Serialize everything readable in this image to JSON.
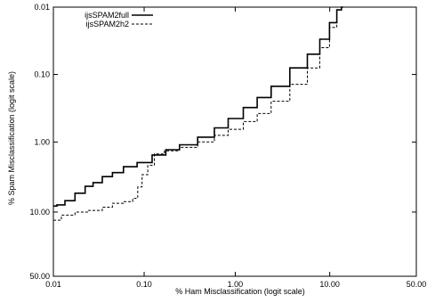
{
  "chart_data": {
    "type": "line",
    "xlabel": "% Ham Misclassification (logit scale)",
    "ylabel": "% Spam Misclassification (logit scale)",
    "x_scale": "logit",
    "y_scale": "logit",
    "y_inverted": true,
    "xlim": [
      0.01,
      50.0
    ],
    "ylim": [
      50.0,
      0.01
    ],
    "x_ticks": [
      0.01,
      0.1,
      1.0,
      10.0,
      50.0
    ],
    "x_tick_labels": [
      "0.01",
      "0.10",
      "1.00",
      "10.00",
      "50.00"
    ],
    "y_ticks": [
      0.01,
      0.1,
      1.0,
      10.0,
      50.0
    ],
    "y_tick_labels": [
      "0.01",
      "0.10",
      "1.00",
      "10.00",
      "50.00"
    ],
    "grid": false,
    "legend_position": "top-left",
    "series": [
      {
        "name": "ijsSPAM2full",
        "line_style": "solid",
        "color": "#000000",
        "points": [
          [
            0.01,
            8.3
          ],
          [
            0.012,
            8.0
          ],
          [
            0.015,
            7.0
          ],
          [
            0.02,
            5.5
          ],
          [
            0.025,
            4.4
          ],
          [
            0.03,
            3.9
          ],
          [
            0.04,
            3.2
          ],
          [
            0.05,
            2.8
          ],
          [
            0.07,
            2.3
          ],
          [
            0.1,
            2.0
          ],
          [
            0.15,
            1.55
          ],
          [
            0.2,
            1.3
          ],
          [
            0.3,
            1.1
          ],
          [
            0.5,
            0.85
          ],
          [
            0.7,
            0.62
          ],
          [
            1.0,
            0.45
          ],
          [
            1.5,
            0.31
          ],
          [
            2.0,
            0.22
          ],
          [
            3.0,
            0.15
          ],
          [
            5.0,
            0.08
          ],
          [
            7.0,
            0.05
          ],
          [
            9.0,
            0.03
          ],
          [
            11.0,
            0.017
          ],
          [
            12.5,
            0.011
          ],
          [
            13.5,
            0.01
          ]
        ]
      },
      {
        "name": "ijsSPAM2h2",
        "line_style": "dashed",
        "color": "#000000",
        "points": [
          [
            0.01,
            12.8
          ],
          [
            0.015,
            11.0
          ],
          [
            0.02,
            10.0
          ],
          [
            0.03,
            9.5
          ],
          [
            0.04,
            8.6
          ],
          [
            0.05,
            7.6
          ],
          [
            0.07,
            7.2
          ],
          [
            0.08,
            6.5
          ],
          [
            0.09,
            4.5
          ],
          [
            0.1,
            3.0
          ],
          [
            0.12,
            2.2
          ],
          [
            0.14,
            1.5
          ],
          [
            0.2,
            1.35
          ],
          [
            0.3,
            1.2
          ],
          [
            0.5,
            1.0
          ],
          [
            0.7,
            0.8
          ],
          [
            1.0,
            0.65
          ],
          [
            1.5,
            0.5
          ],
          [
            2.0,
            0.38
          ],
          [
            3.0,
            0.25
          ],
          [
            5.0,
            0.14
          ],
          [
            7.0,
            0.08
          ],
          [
            9.0,
            0.04
          ],
          [
            11.0,
            0.02
          ],
          [
            12.5,
            0.011
          ],
          [
            13.5,
            0.01
          ]
        ]
      }
    ]
  }
}
